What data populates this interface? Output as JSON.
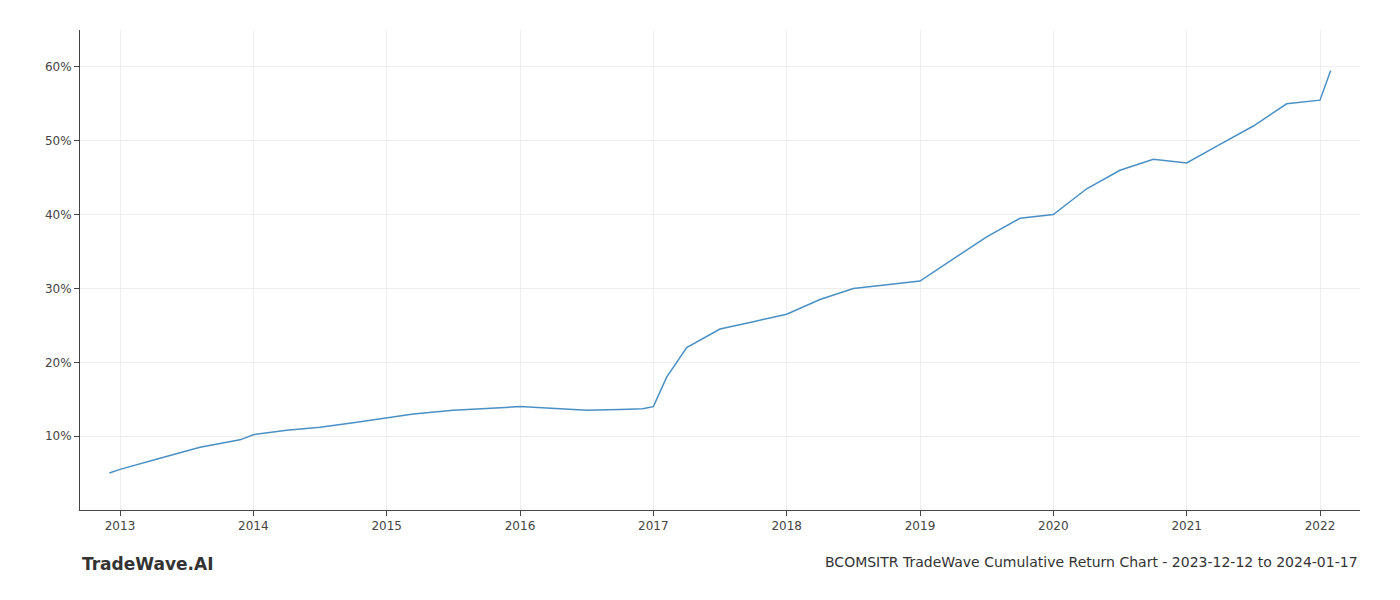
{
  "chart_data": {
    "type": "line",
    "title": "BCOMSITR TradeWave Cumulative Return Chart - 2023-12-12 to 2024-01-17",
    "annotations": [
      "TradeWave.AI"
    ],
    "x": [
      2012.92,
      2013.0,
      2013.3,
      2013.6,
      2013.9,
      2014.0,
      2014.25,
      2014.5,
      2014.75,
      2015.0,
      2015.2,
      2015.5,
      2015.75,
      2016.0,
      2016.2,
      2016.5,
      2016.75,
      2016.92,
      2017.0,
      2017.1,
      2017.25,
      2017.5,
      2017.75,
      2018.0,
      2018.25,
      2018.5,
      2018.75,
      2019.0,
      2019.25,
      2019.5,
      2019.75,
      2020.0,
      2020.25,
      2020.5,
      2020.75,
      2021.0,
      2021.25,
      2021.5,
      2021.75,
      2022.0,
      2022.08
    ],
    "values": [
      5.0,
      5.5,
      7.0,
      8.5,
      9.5,
      10.2,
      10.8,
      11.2,
      11.8,
      12.5,
      13.0,
      13.5,
      13.8,
      14.0,
      13.8,
      13.5,
      13.6,
      13.7,
      14.0,
      18.0,
      22.0,
      24.5,
      25.5,
      26.5,
      28.5,
      30.0,
      30.5,
      31.0,
      34.0,
      37.0,
      39.5,
      40.0,
      43.5,
      46.0,
      47.5,
      47.0,
      49.5,
      52.0,
      55.0,
      55.5,
      59.5
    ],
    "color": "#4a90c4",
    "xlim": [
      2012.7,
      2022.3
    ],
    "ylim": [
      0,
      65
    ],
    "xticks": [
      2013,
      2014,
      2015,
      2016,
      2017,
      2018,
      2019,
      2020,
      2021,
      2022
    ],
    "yticks": [
      {
        "value": 10,
        "label": "10%"
      },
      {
        "value": 20,
        "label": "20%"
      },
      {
        "value": 30,
        "label": "30%"
      },
      {
        "value": 40,
        "label": "40%"
      },
      {
        "value": 50,
        "label": "50%"
      },
      {
        "value": 60,
        "label": "60%"
      }
    ],
    "grid": true
  }
}
